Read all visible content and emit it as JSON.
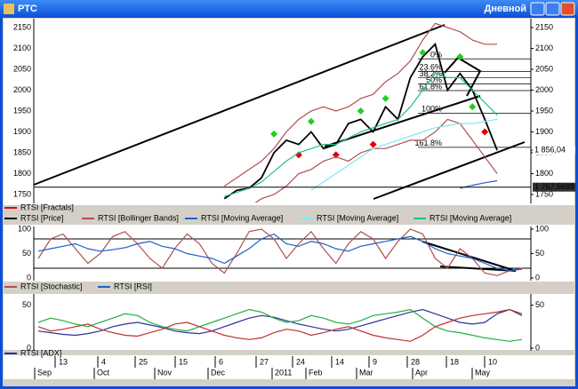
{
  "window": {
    "title": "РТС",
    "timeframe": "Дневной"
  },
  "chart_data": [
    {
      "type": "line",
      "ylim": [
        1735,
        2165
      ],
      "yticks": [
        1750,
        1800,
        1850,
        1900,
        1950,
        2000,
        2050,
        2100,
        2150
      ],
      "series": [
        {
          "name": "RTSI [Fractals]",
          "color": "#e00000",
          "kind": "marker",
          "values": [
            null,
            null,
            null,
            null,
            null,
            null,
            null,
            null,
            null,
            null,
            null,
            null,
            null,
            null,
            null,
            null,
            null,
            null,
            null,
            null,
            null,
            1845,
            null,
            null,
            1845,
            null,
            null,
            1870,
            null,
            null,
            null,
            null,
            null,
            null,
            null,
            null,
            1900,
            null,
            null,
            null
          ]
        },
        {
          "name": "RTSI [Price]",
          "color": "#000000",
          "values": [
            null,
            null,
            null,
            null,
            null,
            null,
            null,
            null,
            null,
            null,
            null,
            null,
            null,
            null,
            null,
            1740,
            1760,
            1765,
            1790,
            1850,
            1880,
            1870,
            1900,
            1860,
            1870,
            1920,
            1930,
            1900,
            1960,
            1930,
            2030,
            2080,
            2110,
            2000,
            2040,
            2000,
            1930,
            1856,
            null,
            null
          ]
        },
        {
          "name": "RTSI [Bollinger Bands]",
          "color": "#b05050",
          "values": [
            null,
            null,
            null,
            null,
            null,
            null,
            null,
            null,
            null,
            null,
            null,
            null,
            null,
            null,
            null,
            1770,
            1790,
            1810,
            1830,
            1860,
            1900,
            1930,
            1950,
            1960,
            1950,
            1960,
            1980,
            1990,
            2020,
            2040,
            2070,
            2120,
            2160,
            2150,
            2140,
            2120,
            2110,
            2110,
            null,
            null
          ]
        },
        {
          "color": "#b05050",
          "values": [
            null,
            null,
            null,
            null,
            null,
            null,
            null,
            null,
            null,
            null,
            null,
            null,
            null,
            null,
            null,
            1700,
            1710,
            1720,
            1740,
            1750,
            1770,
            1800,
            1810,
            1830,
            1840,
            1830,
            1850,
            1860,
            1860,
            1870,
            1880,
            1880,
            1900,
            1930,
            1920,
            1880,
            1840,
            1800,
            null,
            null
          ]
        },
        {
          "name": "RTSI [Moving Average]",
          "color": "#1f5fc8",
          "values": [
            null,
            null,
            null,
            null,
            null,
            null,
            null,
            null,
            null,
            null,
            null,
            null,
            null,
            null,
            null,
            null,
            null,
            null,
            null,
            null,
            null,
            null,
            null,
            null,
            null,
            null,
            null,
            null,
            null,
            null,
            null,
            null,
            null,
            null,
            1765,
            1772,
            1778,
            1783,
            null,
            null
          ]
        },
        {
          "name": "RTSI [Moving Average]",
          "color": "#7fe6f5",
          "values": [
            null,
            null,
            null,
            null,
            null,
            null,
            null,
            null,
            null,
            null,
            null,
            null,
            null,
            null,
            null,
            null,
            null,
            null,
            null,
            null,
            null,
            null,
            1760,
            1780,
            1800,
            1820,
            1840,
            1860,
            1870,
            1880,
            1890,
            1900,
            1910,
            1915,
            1920,
            1920,
            1925,
            1930,
            null,
            null
          ]
        },
        {
          "name": "RTSI [Moving Average]",
          "color": "#20c080",
          "values": [
            null,
            null,
            null,
            null,
            null,
            null,
            null,
            null,
            null,
            null,
            null,
            null,
            null,
            null,
            null,
            1745,
            1755,
            1765,
            1780,
            1805,
            1830,
            1850,
            1860,
            1870,
            1870,
            1885,
            1900,
            1910,
            1920,
            1930,
            1960,
            2000,
            2040,
            2030,
            2030,
            2000,
            1970,
            1940,
            null,
            null
          ]
        },
        {
          "color": "#20d020",
          "kind": "marker",
          "values": [
            null,
            null,
            null,
            null,
            null,
            null,
            null,
            null,
            null,
            null,
            null,
            null,
            null,
            null,
            null,
            null,
            null,
            null,
            null,
            1895,
            null,
            null,
            1925,
            null,
            null,
            null,
            1950,
            null,
            1980,
            null,
            null,
            2090,
            null,
            null,
            2080,
            1960,
            null,
            null,
            null,
            null
          ]
        }
      ],
      "fibonacci": [
        {
          "label": "0%",
          "value": 2075
        },
        {
          "label": "23.6%",
          "value": 2045
        },
        {
          "label": "38.2%",
          "value": 2030
        },
        {
          "label": "50%",
          "value": 2015
        },
        {
          "label": "61.8%",
          "value": 1999
        },
        {
          "label": "100%",
          "value": 1945
        },
        {
          "label": "161.8%",
          "value": 1863
        }
      ],
      "price_labels": [
        {
          "label": "1 856,04",
          "value": 1856.04
        },
        {
          "label": "1 767,5688",
          "value": 1767.5688
        }
      ]
    },
    {
      "type": "line",
      "ylim": [
        0,
        100
      ],
      "yticks": [
        0,
        50,
        100
      ],
      "levels": [
        20,
        80
      ],
      "series": [
        {
          "name": "RTSI [Stochastic]",
          "color": "#b05050",
          "values": [
            40,
            80,
            90,
            60,
            30,
            50,
            85,
            95,
            70,
            40,
            20,
            60,
            90,
            70,
            30,
            10,
            50,
            95,
            100,
            80,
            40,
            70,
            95,
            60,
            30,
            70,
            95,
            80,
            40,
            75,
            100,
            90,
            40,
            20,
            60,
            40,
            10,
            5,
            15,
            20
          ]
        },
        {
          "name": "RTSI [RSI]",
          "color": "#1f5fc8",
          "values": [
            55,
            60,
            65,
            70,
            60,
            55,
            58,
            62,
            70,
            75,
            65,
            60,
            50,
            45,
            40,
            30,
            45,
            60,
            80,
            90,
            70,
            65,
            75,
            70,
            60,
            55,
            65,
            70,
            75,
            80,
            85,
            75,
            60,
            50,
            45,
            40,
            30,
            20,
            15,
            18
          ]
        }
      ]
    },
    {
      "type": "line",
      "ylim": [
        0,
        60
      ],
      "yticks": [
        0,
        50
      ],
      "series": [
        {
          "name": "RTSI [ADX]",
          "color": "#30309a",
          "values": [
            20,
            18,
            16,
            15,
            17,
            20,
            25,
            28,
            30,
            27,
            24,
            20,
            18,
            17,
            20,
            25,
            30,
            35,
            38,
            36,
            32,
            28,
            25,
            22,
            20,
            22,
            26,
            30,
            34,
            38,
            42,
            45,
            40,
            35,
            30,
            28,
            30,
            40,
            45,
            38
          ]
        },
        {
          "color": "#20b040",
          "values": [
            30,
            35,
            32,
            28,
            25,
            30,
            35,
            40,
            38,
            30,
            25,
            22,
            20,
            25,
            30,
            35,
            40,
            45,
            42,
            35,
            30,
            32,
            38,
            35,
            30,
            28,
            32,
            38,
            40,
            42,
            45,
            35,
            25,
            20,
            18,
            15,
            12,
            10,
            8,
            10
          ]
        },
        {
          "color": "#c03030",
          "values": [
            25,
            20,
            22,
            25,
            28,
            22,
            18,
            15,
            14,
            18,
            22,
            28,
            30,
            25,
            20,
            15,
            12,
            10,
            12,
            18,
            22,
            20,
            15,
            18,
            22,
            25,
            20,
            15,
            12,
            10,
            8,
            15,
            25,
            30,
            35,
            38,
            40,
            42,
            45,
            40
          ]
        }
      ]
    }
  ],
  "x_axis": {
    "days": [
      "13",
      "4",
      "25",
      "15",
      "6",
      "27",
      "24",
      "14",
      "9",
      "28",
      "18",
      "10"
    ],
    "months": [
      "Sep",
      "Oct",
      "Nov",
      "Dec",
      "2011",
      "Feb",
      "Mar",
      "Apr",
      "May"
    ]
  }
}
